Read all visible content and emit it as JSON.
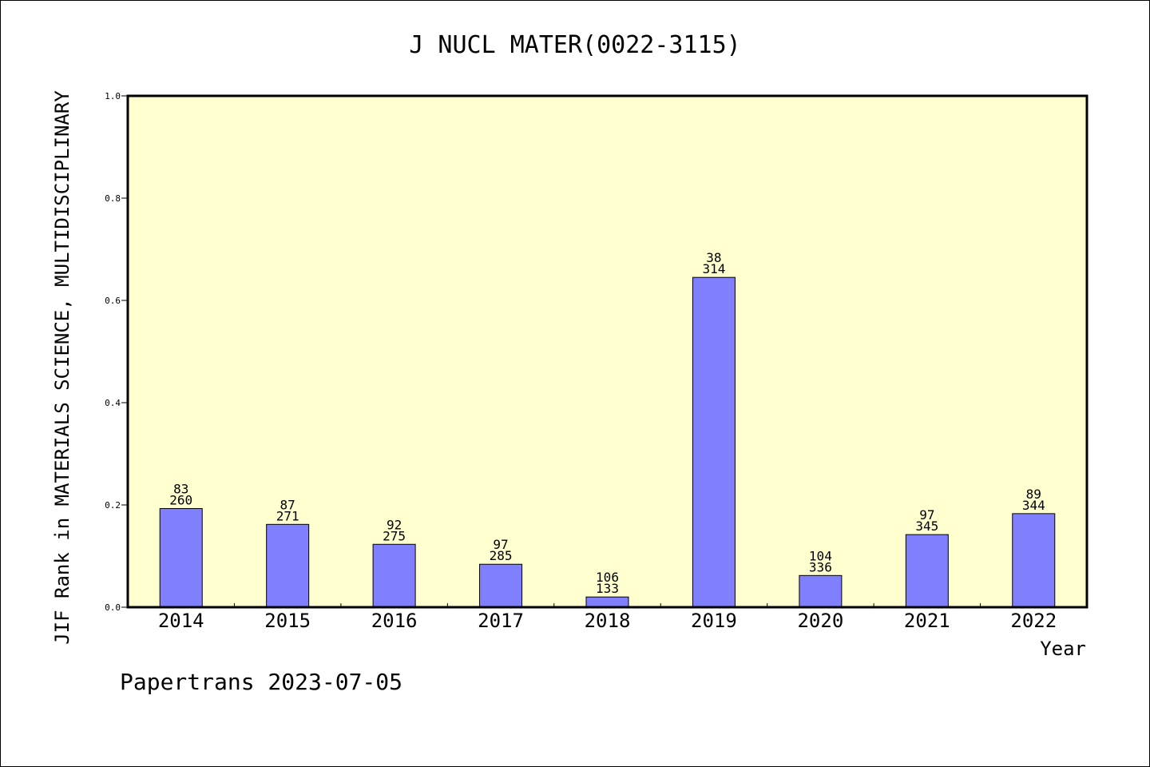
{
  "chart_data": {
    "type": "bar",
    "title": "J NUCL MATER(0022-3115)",
    "xlabel": "Year",
    "ylabel": "JIF Rank in MATERIALS SCIENCE, MULTIDISCIPLINARY",
    "ylim": [
      0,
      1.0
    ],
    "yticks": [
      "0.0",
      "0.2",
      "0.4",
      "0.6",
      "0.8",
      "1.0"
    ],
    "categories": [
      "2014",
      "2015",
      "2016",
      "2017",
      "2018",
      "2019",
      "2020",
      "2021",
      "2022"
    ],
    "values": [
      0.193,
      0.162,
      0.123,
      0.084,
      0.02,
      0.645,
      0.062,
      0.142,
      0.183
    ],
    "rank": [
      "83",
      "87",
      "92",
      "97",
      "106",
      "38",
      "104",
      "97",
      "89"
    ],
    "total": [
      "260",
      "271",
      "275",
      "285",
      "133",
      "314",
      "336",
      "345",
      "344"
    ],
    "grid": false,
    "colors": {
      "bar": "#8080ff",
      "plot_background": "#ffffd0",
      "axes": "#000000"
    }
  },
  "footer": "Papertrans 2023-07-05"
}
